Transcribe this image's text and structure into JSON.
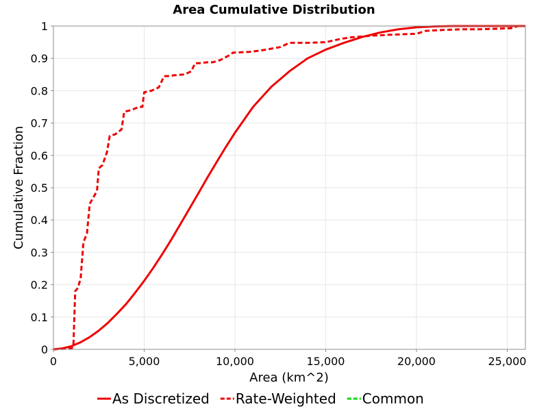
{
  "chart_data": {
    "type": "line",
    "title": "Area Cumulative Distribution",
    "xlabel": "Area (km^2)",
    "ylabel": "Cumulative Fraction",
    "xlim": [
      0,
      26000
    ],
    "ylim": [
      0,
      1
    ],
    "x_ticks": [
      0,
      5000,
      10000,
      15000,
      20000,
      25000
    ],
    "x_tick_labels": [
      "0",
      "5,000",
      "10,000",
      "15,000",
      "20,000",
      "25,000"
    ],
    "y_ticks": [
      0,
      0.1,
      0.2,
      0.3,
      0.4,
      0.5,
      0.6,
      0.7,
      0.8,
      0.9,
      1
    ],
    "y_tick_labels": [
      "0",
      "0.1",
      "0.2",
      "0.3",
      "0.4",
      "0.5",
      "0.6",
      "0.7",
      "0.8",
      "0.9",
      "1"
    ],
    "grid": true,
    "legend_position": "bottom",
    "series": [
      {
        "name": "As Discretized",
        "color": "#ee0000",
        "style": "solid",
        "x": [
          0,
          500,
          1000,
          1500,
          2000,
          2500,
          3000,
          3500,
          4000,
          4500,
          5000,
          5500,
          6000,
          6500,
          7000,
          7500,
          8000,
          8500,
          9000,
          9500,
          10000,
          11000,
          12000,
          13000,
          14000,
          15000,
          16000,
          17000,
          18000,
          19000,
          20000,
          21000,
          22000,
          23000,
          24000,
          25000,
          26000
        ],
        "y": [
          0,
          0.003,
          0.01,
          0.022,
          0.038,
          0.058,
          0.082,
          0.11,
          0.14,
          0.175,
          0.212,
          0.252,
          0.295,
          0.34,
          0.388,
          0.436,
          0.484,
          0.533,
          0.58,
          0.626,
          0.67,
          0.75,
          0.812,
          0.86,
          0.9,
          0.927,
          0.948,
          0.966,
          0.98,
          0.99,
          0.996,
          0.999,
          1.0,
          1.0,
          1.0,
          1.0,
          1.0
        ]
      },
      {
        "name": "Rate-Weighted",
        "color": "#ee0000",
        "style": "dashed",
        "x": [
          0,
          1000,
          1100,
          1200,
          1350,
          1500,
          1650,
          1850,
          2000,
          2200,
          2400,
          2500,
          2700,
          2950,
          3100,
          3400,
          3750,
          3900,
          4300,
          4700,
          4900,
          5000,
          5400,
          5800,
          6100,
          6300,
          6700,
          7200,
          7600,
          7800,
          8000,
          8500,
          8800,
          9200,
          9700,
          9900,
          10000,
          10800,
          11500,
          12500,
          13000,
          14000,
          15000,
          15800,
          16400,
          17500,
          18500,
          20000,
          20500,
          21500,
          22500,
          23500,
          24500,
          25200,
          25600,
          26000
        ],
        "y": [
          0,
          0.003,
          0.01,
          0.18,
          0.19,
          0.22,
          0.33,
          0.36,
          0.45,
          0.47,
          0.49,
          0.56,
          0.57,
          0.61,
          0.66,
          0.665,
          0.68,
          0.735,
          0.74,
          0.75,
          0.75,
          0.795,
          0.8,
          0.81,
          0.845,
          0.845,
          0.848,
          0.85,
          0.86,
          0.885,
          0.885,
          0.888,
          0.888,
          0.895,
          0.91,
          0.918,
          0.918,
          0.92,
          0.925,
          0.935,
          0.948,
          0.948,
          0.95,
          0.96,
          0.965,
          0.97,
          0.973,
          0.976,
          0.985,
          0.988,
          0.99,
          0.99,
          0.992,
          0.993,
          1.0,
          1.0
        ]
      },
      {
        "name": "Common",
        "color": "#00dd00",
        "style": "dashed",
        "x": [],
        "y": []
      }
    ]
  }
}
